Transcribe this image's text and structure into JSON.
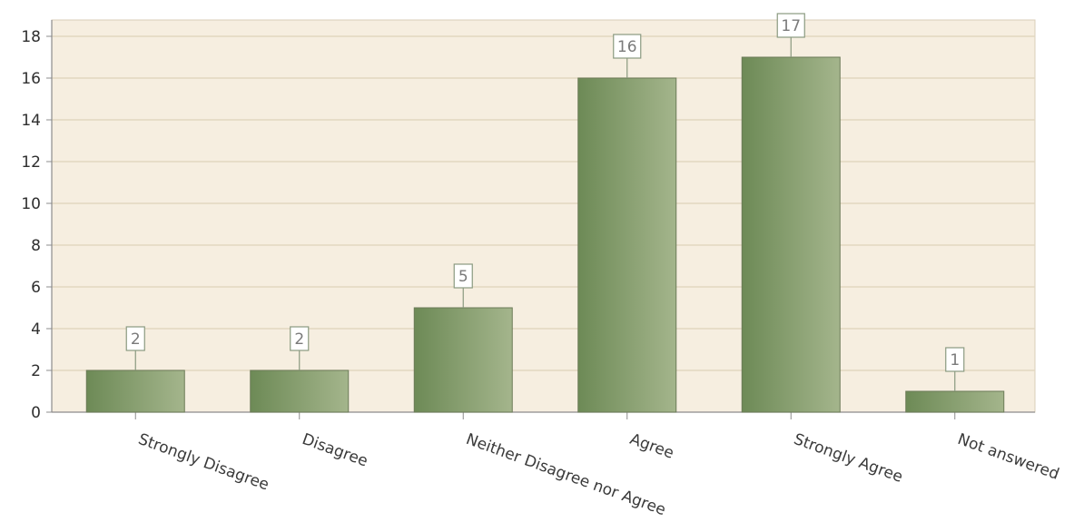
{
  "chart_data": {
    "type": "bar",
    "title": "",
    "xlabel": "",
    "ylabel": "",
    "categories": [
      "Strongly Disagree",
      "Disagree",
      "Neither Disagree nor Agree",
      "Agree",
      "Strongly Agree",
      "Not answered"
    ],
    "values": [
      2,
      2,
      5,
      16,
      17,
      1
    ],
    "ylim": [
      0,
      18
    ],
    "y_ticks": [
      0,
      2,
      4,
      6,
      8,
      10,
      12,
      14,
      16,
      18
    ],
    "grid": true,
    "legend": "none",
    "colors": {
      "plot_background": "#f6eee0",
      "gridline": "#e2d7c0",
      "axis": "#8c8c8c",
      "bar_dark": "#6d8a56",
      "bar_light": "#a4b58c",
      "bar_border": "#6b7a57",
      "label_box_border": "#8a9a80"
    }
  }
}
